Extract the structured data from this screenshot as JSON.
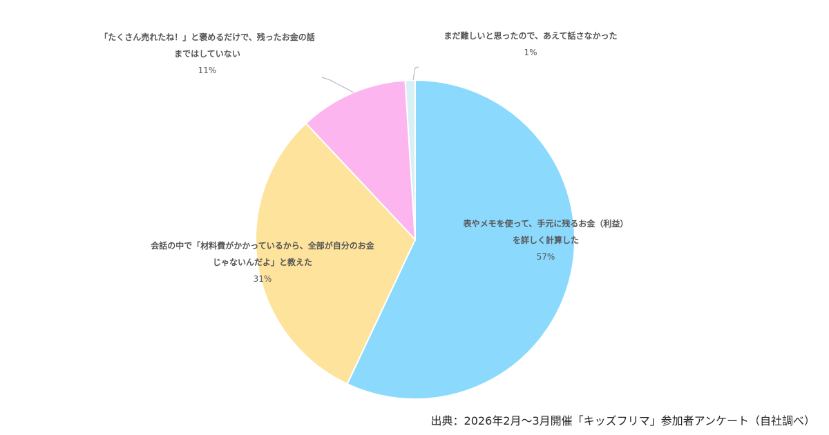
{
  "chart_data": {
    "type": "pie",
    "colors": [
      "#8bd9fd",
      "#fee39c",
      "#fcb5ef",
      "#d6f0f5"
    ],
    "slices": [
      {
        "label_lines": [
          "表やメモを使って、手元に残るお金（利益）",
          "を詳しく計算した"
        ],
        "value": 57,
        "value_label": "57%"
      },
      {
        "label_lines": [
          "会話の中で「材料費がかかっているから、全部が自分のお金",
          "じゃないんだよ」と教えた"
        ],
        "value": 31,
        "value_label": "31%"
      },
      {
        "label_lines": [
          "「たくさん売れたね！」と褒めるだけで、残ったお金の話",
          "まではしていない"
        ],
        "value": 11,
        "value_label": "11%"
      },
      {
        "label_lines": [
          "まだ難しいと思ったので、あえて話さなかった"
        ],
        "value": 1,
        "value_label": "1%"
      }
    ]
  },
  "source": "出典：2026年2月〜3月開催「キッズフリマ」参加者アンケート（自社調べ）"
}
